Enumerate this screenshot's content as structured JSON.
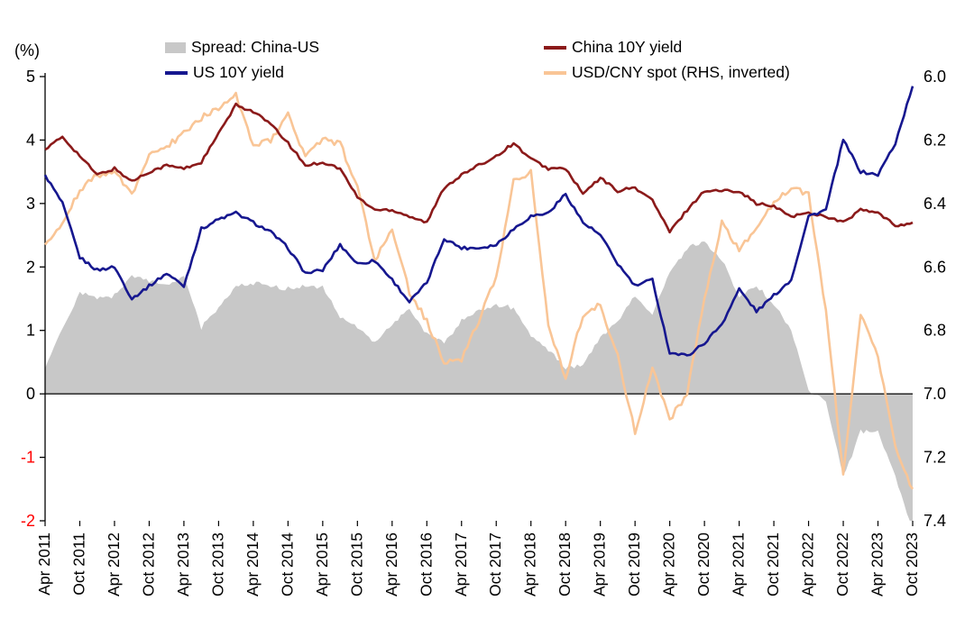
{
  "chart_data": {
    "type": "line",
    "title": "",
    "left_axis": {
      "label": "(%)",
      "min": -2,
      "max": 5,
      "ticks": [
        5,
        4,
        3,
        2,
        1,
        0,
        -1,
        -2
      ],
      "tick_color": "#000000",
      "negative_tick_color": "#FF0000"
    },
    "right_axis": {
      "min": 6.0,
      "max": 7.4,
      "ticks": [
        6.0,
        6.2,
        6.4,
        6.6,
        6.8,
        7.0,
        7.2,
        7.4
      ],
      "inverted": true
    },
    "x_axis": {
      "start_label": "Apr 2011",
      "end_label": "Oct 2023",
      "step_months_between_points": 3,
      "tick_step_months": 6,
      "tick_labels": [
        "Apr 2011",
        "Oct 2011",
        "Apr 2012",
        "Oct 2012",
        "Apr 2013",
        "Oct 2013",
        "Apr 2014",
        "Oct 2014",
        "Apr 2015",
        "Oct 2015",
        "Apr 2016",
        "Oct 2016",
        "Apr 2017",
        "Oct 2017",
        "Apr 2018",
        "Oct 2018",
        "Apr 2019",
        "Oct 2019",
        "Apr 2020",
        "Oct 2020",
        "Apr 2021",
        "Oct 2021",
        "Apr 2022",
        "Oct 2022",
        "Apr 2023",
        "Oct 2023"
      ]
    },
    "legend": [
      {
        "label": "Spread: China-US",
        "color": "#C8C8C8",
        "shape": "area"
      },
      {
        "label": "China 10Y yield",
        "color": "#8B1A1A",
        "shape": "line"
      },
      {
        "label": "US 10Y yield",
        "color": "#16178F",
        "shape": "line"
      },
      {
        "label": "USD/CNY spot (RHS, inverted)",
        "color": "#F9C596",
        "shape": "line"
      }
    ],
    "series": [
      {
        "name": "China 10Y yield",
        "axis": "left",
        "color": "#8B1A1A",
        "values": [
          3.85,
          4.05,
          3.75,
          3.45,
          3.55,
          3.35,
          3.5,
          3.6,
          3.55,
          3.65,
          4.1,
          4.55,
          4.45,
          4.25,
          3.95,
          3.6,
          3.65,
          3.55,
          3.1,
          2.9,
          2.9,
          2.8,
          2.7,
          3.25,
          3.45,
          3.6,
          3.75,
          3.95,
          3.7,
          3.55,
          3.55,
          3.15,
          3.4,
          3.2,
          3.25,
          3.05,
          2.55,
          2.9,
          3.2,
          3.2,
          3.2,
          3.0,
          2.95,
          2.8,
          2.85,
          2.8,
          2.7,
          2.9,
          2.85,
          2.65,
          2.7
        ]
      },
      {
        "name": "US 10Y yield",
        "axis": "left",
        "color": "#16178F",
        "values": [
          3.45,
          3.0,
          2.15,
          1.95,
          2.0,
          1.5,
          1.7,
          1.9,
          1.7,
          2.6,
          2.75,
          2.85,
          2.7,
          2.55,
          2.3,
          1.9,
          1.95,
          2.35,
          2.05,
          2.1,
          1.8,
          1.45,
          1.75,
          2.45,
          2.3,
          2.3,
          2.35,
          2.6,
          2.8,
          2.85,
          3.15,
          2.7,
          2.5,
          2.05,
          1.7,
          1.8,
          0.65,
          0.6,
          0.8,
          1.1,
          1.65,
          1.3,
          1.55,
          1.8,
          2.8,
          2.9,
          4.0,
          3.5,
          3.45,
          3.95,
          4.85
        ]
      },
      {
        "name": "USD/CNY spot",
        "axis": "right",
        "color": "#F9C596",
        "values": [
          6.53,
          6.46,
          6.36,
          6.31,
          6.3,
          6.37,
          6.25,
          6.22,
          6.18,
          6.13,
          6.1,
          6.06,
          6.22,
          6.2,
          6.12,
          6.25,
          6.2,
          6.21,
          6.35,
          6.58,
          6.48,
          6.68,
          6.77,
          6.9,
          6.89,
          6.77,
          6.63,
          6.33,
          6.3,
          6.78,
          6.95,
          6.75,
          6.72,
          6.88,
          7.12,
          6.92,
          7.08,
          7.0,
          6.7,
          6.46,
          6.55,
          6.47,
          6.4,
          6.35,
          6.37,
          6.74,
          7.25,
          6.75,
          6.88,
          7.17,
          7.3
        ]
      },
      {
        "name": "Spread: China-US",
        "axis": "left",
        "color": "#C8C8C8",
        "type": "area",
        "derived": "China 10Y yield minus US 10Y yield"
      }
    ]
  }
}
